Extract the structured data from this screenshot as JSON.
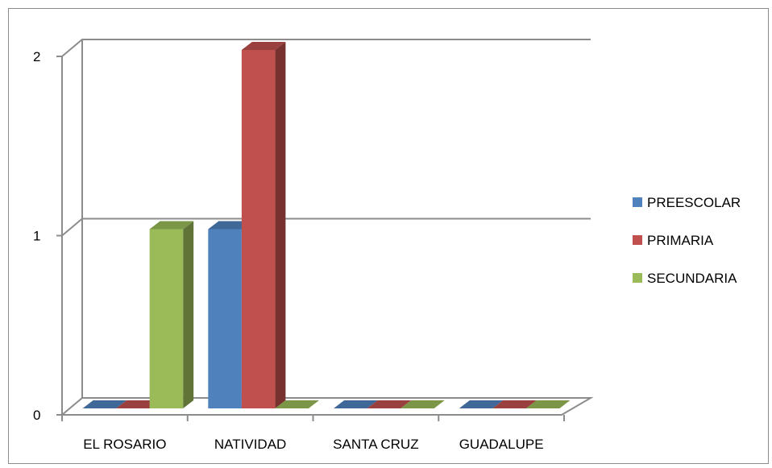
{
  "chart_data": {
    "type": "bar",
    "title": "",
    "xlabel": "",
    "ylabel": "",
    "categories": [
      "EL ROSARIO",
      "NATIVIDAD",
      "SANTA CRUZ",
      "GUADALUPE"
    ],
    "series": [
      {
        "name": "PREESCOLAR",
        "values": [
          0,
          1,
          0,
          0
        ],
        "color": "#4f81bd"
      },
      {
        "name": "PRIMARIA",
        "values": [
          0,
          2,
          0,
          0
        ],
        "color": "#c0504d"
      },
      {
        "name": "SECUNDARIA",
        "values": [
          1,
          0,
          0,
          0
        ],
        "color": "#9bbb59"
      }
    ],
    "ylim": [
      0,
      2
    ],
    "yticks": [
      "0",
      "1",
      "2"
    ],
    "grid": true,
    "legend": "right",
    "style": "3d-clustered-column"
  }
}
